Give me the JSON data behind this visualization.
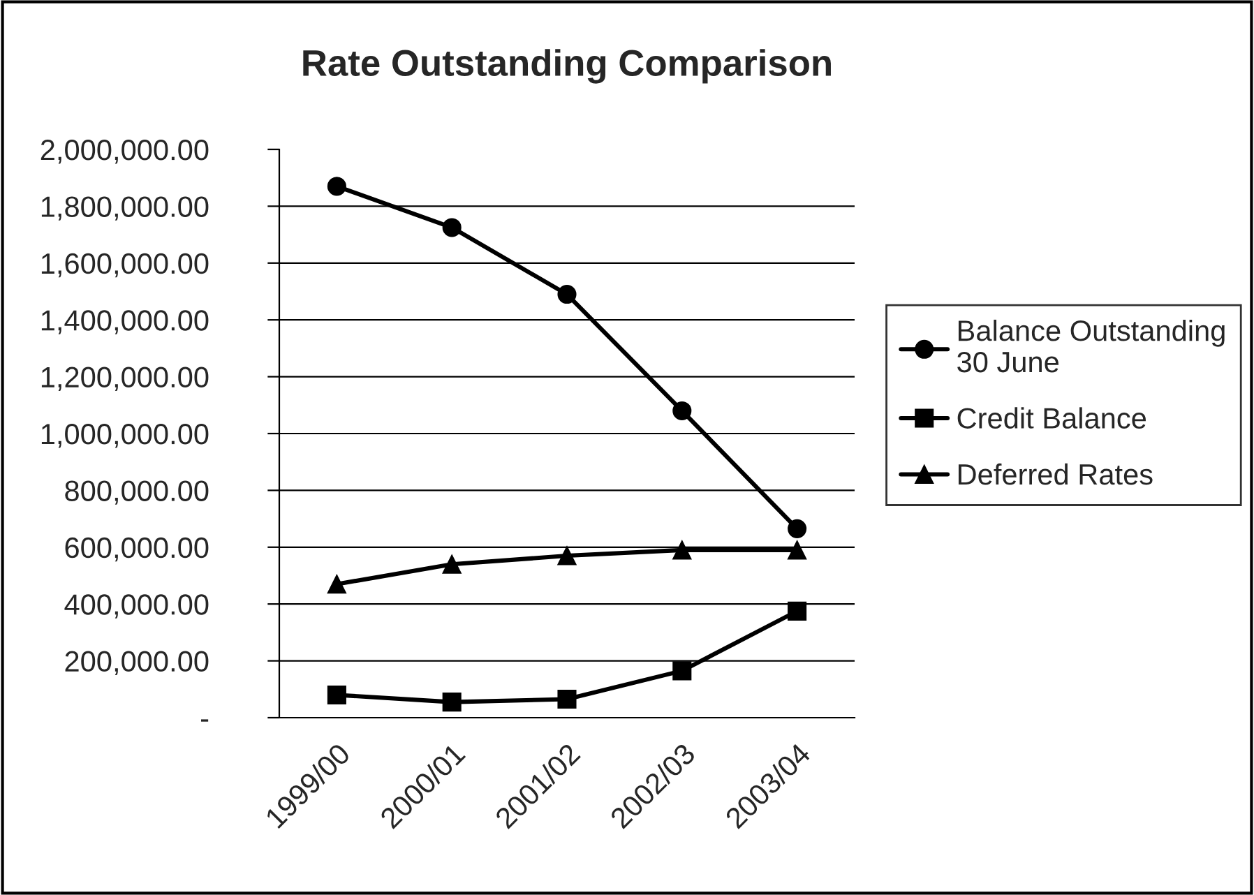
{
  "chart_data": {
    "type": "line",
    "title": "Rate Outstanding Comparison",
    "categories": [
      "1999/00",
      "2000/01",
      "2001/02",
      "2002/03",
      "2003/04"
    ],
    "series": [
      {
        "name": "Balance Outstanding\n30 June",
        "color": "#000000",
        "marker": "circle",
        "values": [
          1870000,
          1725000,
          1490000,
          1080000,
          665000
        ]
      },
      {
        "name": "Credit Balance",
        "color": "#000000",
        "marker": "square",
        "values": [
          80000,
          55000,
          65000,
          165000,
          375000
        ]
      },
      {
        "name": "Deferred Rates",
        "color": "#000000",
        "marker": "triangle",
        "values": [
          470000,
          540000,
          570000,
          590000,
          590000
        ]
      }
    ],
    "ylim": [
      0,
      2000000
    ],
    "yticks": [
      {
        "value": 0,
        "label": "-"
      },
      {
        "value": 200000,
        "label": "200,000.00"
      },
      {
        "value": 400000,
        "label": "400,000.00"
      },
      {
        "value": 600000,
        "label": "600,000.00"
      },
      {
        "value": 800000,
        "label": "800,000.00"
      },
      {
        "value": 1000000,
        "label": "1,000,000.00"
      },
      {
        "value": 1200000,
        "label": "1,200,000.00"
      },
      {
        "value": 1400000,
        "label": "1,400,000.00"
      },
      {
        "value": 1600000,
        "label": "1,600,000.00"
      },
      {
        "value": 1800000,
        "label": "1,800,000.00"
      },
      {
        "value": 2000000,
        "label": "2,000,000.00"
      }
    ],
    "grid": "y",
    "legend": "right",
    "line_style": "solid"
  }
}
